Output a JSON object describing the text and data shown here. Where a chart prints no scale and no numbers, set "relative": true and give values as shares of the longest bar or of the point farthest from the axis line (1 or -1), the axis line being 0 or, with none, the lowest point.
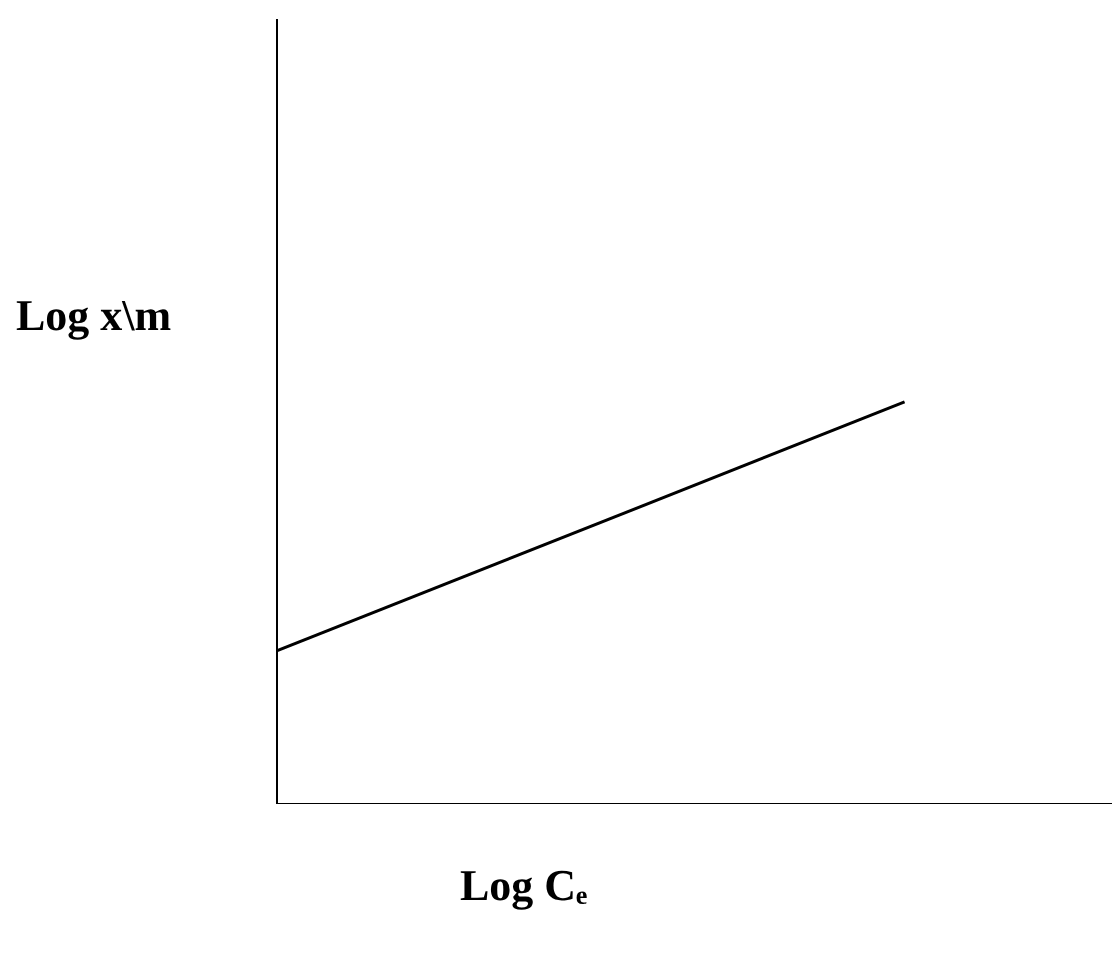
{
  "chart_data": {
    "type": "line",
    "relative": true,
    "xlabel": "Log Cₑ",
    "ylabel": "Log x\\m",
    "categories": [
      null,
      null
    ],
    "series": [
      {
        "color": "#000000",
        "values": [
          0.38,
          1
        ]
      }
    ],
    "marker": "none",
    "grid": false,
    "legend": false
  }
}
